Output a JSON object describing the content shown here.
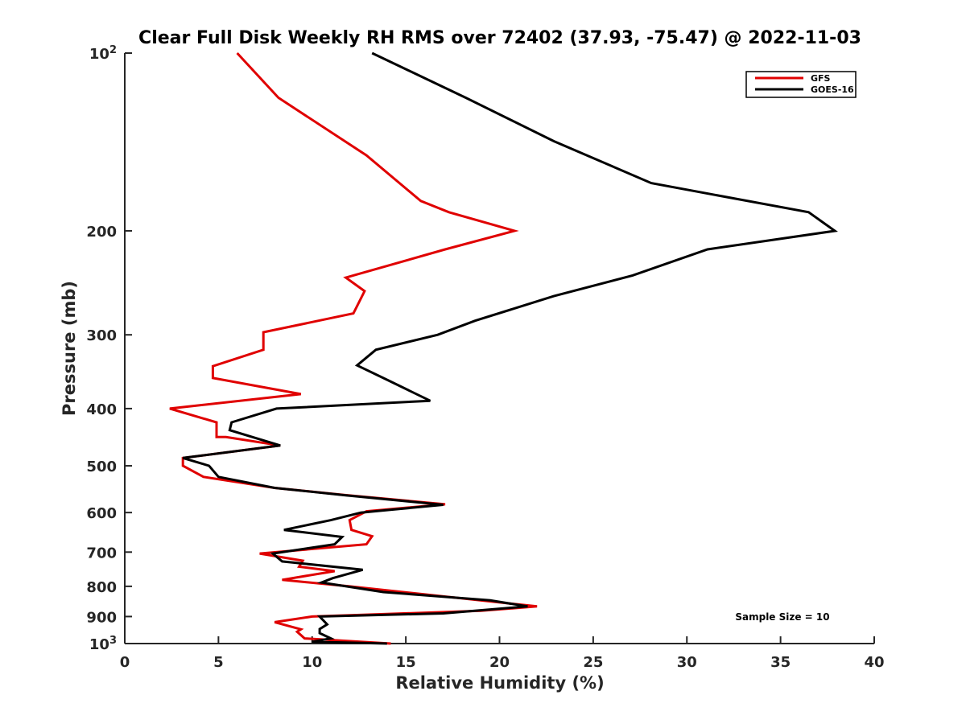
{
  "chart_data": {
    "type": "line",
    "title": "Clear Full Disk Weekly RH RMS over 72402 (37.93, -75.47) @ 2022-11-03",
    "xlabel": "Relative Humidity (%)",
    "ylabel": "Pressure (mb)",
    "xlim": [
      0,
      40
    ],
    "ylim": [
      100,
      1000
    ],
    "y_scale": "log",
    "y_reversed": true,
    "x_ticks": [
      0,
      5,
      10,
      15,
      20,
      25,
      30,
      35,
      40
    ],
    "x_tick_labels": [
      "0",
      "5",
      "10",
      "15",
      "20",
      "25",
      "30",
      "35",
      "40"
    ],
    "y_ticks": [
      100,
      200,
      300,
      400,
      500,
      600,
      700,
      800,
      900,
      1000
    ],
    "y_tick_labels": [
      {
        "base": "10",
        "sup": "2"
      },
      {
        "base": "200",
        "sup": ""
      },
      {
        "base": "300",
        "sup": ""
      },
      {
        "base": "400",
        "sup": ""
      },
      {
        "base": "500",
        "sup": ""
      },
      {
        "base": "600",
        "sup": ""
      },
      {
        "base": "700",
        "sup": ""
      },
      {
        "base": "800",
        "sup": ""
      },
      {
        "base": "900",
        "sup": ""
      },
      {
        "base": "10",
        "sup": "3"
      }
    ],
    "legend": {
      "location": "top-right",
      "entries": [
        "GFS",
        "GOES-16"
      ]
    },
    "annotation": "Sample Size = 10",
    "series": [
      {
        "name": "GFS",
        "color": "#e00000",
        "points": [
          [
            6.0,
            100
          ],
          [
            8.2,
            119
          ],
          [
            12.9,
            149
          ],
          [
            15.8,
            178
          ],
          [
            17.3,
            186
          ],
          [
            20.8,
            200
          ],
          [
            17.1,
            215
          ],
          [
            11.8,
            240
          ],
          [
            12.8,
            253
          ],
          [
            12.2,
            276
          ],
          [
            7.4,
            297
          ],
          [
            7.4,
            318
          ],
          [
            4.7,
            339
          ],
          [
            4.7,
            355
          ],
          [
            9.4,
            378
          ],
          [
            2.4,
            400
          ],
          [
            4.9,
            422
          ],
          [
            4.9,
            447
          ],
          [
            5.4,
            447
          ],
          [
            8.3,
            462
          ],
          [
            3.1,
            485
          ],
          [
            3.1,
            500
          ],
          [
            4.2,
            522
          ],
          [
            8.0,
            545
          ],
          [
            11.7,
            560
          ],
          [
            17.1,
            581
          ],
          [
            12.9,
            597
          ],
          [
            12.0,
            618
          ],
          [
            12.1,
            642
          ],
          [
            13.2,
            658
          ],
          [
            12.9,
            679
          ],
          [
            7.2,
            704
          ],
          [
            9.5,
            724
          ],
          [
            9.3,
            741
          ],
          [
            11.2,
            754
          ],
          [
            8.4,
            780
          ],
          [
            12.0,
            800
          ],
          [
            22.0,
            865
          ],
          [
            19.0,
            880
          ],
          [
            10.0,
            900
          ],
          [
            8.0,
            920
          ],
          [
            9.4,
            946
          ],
          [
            9.2,
            955
          ],
          [
            9.6,
            980
          ],
          [
            14.2,
            1000
          ]
        ]
      },
      {
        "name": "GOES-16",
        "color": "#000000",
        "points": [
          [
            13.2,
            100
          ],
          [
            18.2,
            119
          ],
          [
            22.9,
            141
          ],
          [
            28.1,
            166
          ],
          [
            36.5,
            186
          ],
          [
            37.9,
            200
          ],
          [
            31.1,
            215
          ],
          [
            27.1,
            238
          ],
          [
            22.9,
            258
          ],
          [
            18.7,
            284
          ],
          [
            16.7,
            300
          ],
          [
            13.4,
            318
          ],
          [
            12.4,
            338
          ],
          [
            13.8,
            355
          ],
          [
            16.3,
            388
          ],
          [
            8.1,
            400
          ],
          [
            5.7,
            422
          ],
          [
            5.6,
            435
          ],
          [
            8.3,
            462
          ],
          [
            3.1,
            485
          ],
          [
            4.5,
            500
          ],
          [
            5.0,
            522
          ],
          [
            8.0,
            545
          ],
          [
            11.8,
            561
          ],
          [
            17.0,
            582
          ],
          [
            12.6,
            600
          ],
          [
            11.0,
            618
          ],
          [
            8.5,
            642
          ],
          [
            11.6,
            660
          ],
          [
            11.2,
            679
          ],
          [
            7.9,
            704
          ],
          [
            8.4,
            726
          ],
          [
            12.7,
            750
          ],
          [
            11.1,
            775
          ],
          [
            10.5,
            788
          ],
          [
            13.8,
            818
          ],
          [
            19.5,
            845
          ],
          [
            21.5,
            865
          ],
          [
            17.0,
            889
          ],
          [
            10.4,
            900
          ],
          [
            10.8,
            928
          ],
          [
            10.4,
            945
          ],
          [
            10.4,
            960
          ],
          [
            11.0,
            980
          ],
          [
            10.0,
            993
          ],
          [
            14.0,
            1000
          ]
        ]
      }
    ]
  }
}
